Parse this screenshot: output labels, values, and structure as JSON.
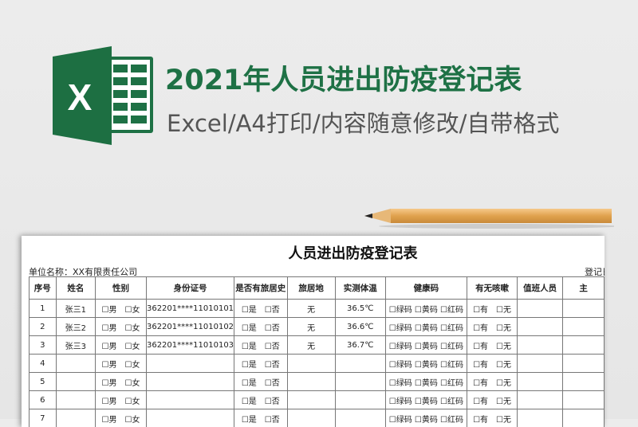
{
  "banner": {
    "title": "2021年人员进出防疫登记表",
    "subtitle": "Excel/A4打印/内容随意修改/自带格式",
    "icon": "excel-logo-icon",
    "icon_letter": "X",
    "title_color": "#1e7145",
    "brand_color": "#1e7145"
  },
  "sheet": {
    "title": "人员进出防疫登记表",
    "unit": "单位名称：XX有限责任公司",
    "reg_date_label": "登记日",
    "headers": [
      "序号",
      "姓名",
      "性别",
      "身份证号",
      "是否有旅居史",
      "旅居地",
      "实测体温",
      "健康码",
      "有无咳嗽",
      "值班人员",
      "主"
    ],
    "rows": [
      {
        "no": "1",
        "name": "张三1",
        "gender": "☐男　☐女",
        "id": "362201****11010101",
        "travel": "☐是　☐否",
        "place": "无",
        "temp": "36.5℃",
        "code": "☐绿码 ☐黄码 ☐红码",
        "cough": "☐有　☐无"
      },
      {
        "no": "2",
        "name": "张三2",
        "gender": "☐男　☐女",
        "id": "362201****11010102",
        "travel": "☐是　☐否",
        "place": "无",
        "temp": "36.6℃",
        "code": "☐绿码 ☐黄码 ☐红码",
        "cough": "☐有　☐无"
      },
      {
        "no": "3",
        "name": "张三3",
        "gender": "☐男　☐女",
        "id": "362201****11010103",
        "travel": "☐是　☐否",
        "place": "无",
        "temp": "36.7℃",
        "code": "☐绿码 ☐黄码 ☐红码",
        "cough": "☐有　☐无"
      },
      {
        "no": "4",
        "gender": "☐男　☐女",
        "travel": "☐是　☐否",
        "code": "☐绿码 ☐黄码 ☐红码",
        "cough": "☐有　☐无"
      },
      {
        "no": "5",
        "gender": "☐男　☐女",
        "travel": "☐是　☐否",
        "code": "☐绿码 ☐黄码 ☐红码",
        "cough": "☐有　☐无"
      },
      {
        "no": "6",
        "gender": "☐男　☐女",
        "travel": "☐是　☐否",
        "code": "☐绿码 ☐黄码 ☐红码",
        "cough": "☐有　☐无"
      },
      {
        "no": "7",
        "gender": "☐男　☐女",
        "travel": "☐是　☐否",
        "code": "☐绿码 ☐黄码 ☐红码",
        "cough": "☐有　☐无"
      }
    ]
  }
}
